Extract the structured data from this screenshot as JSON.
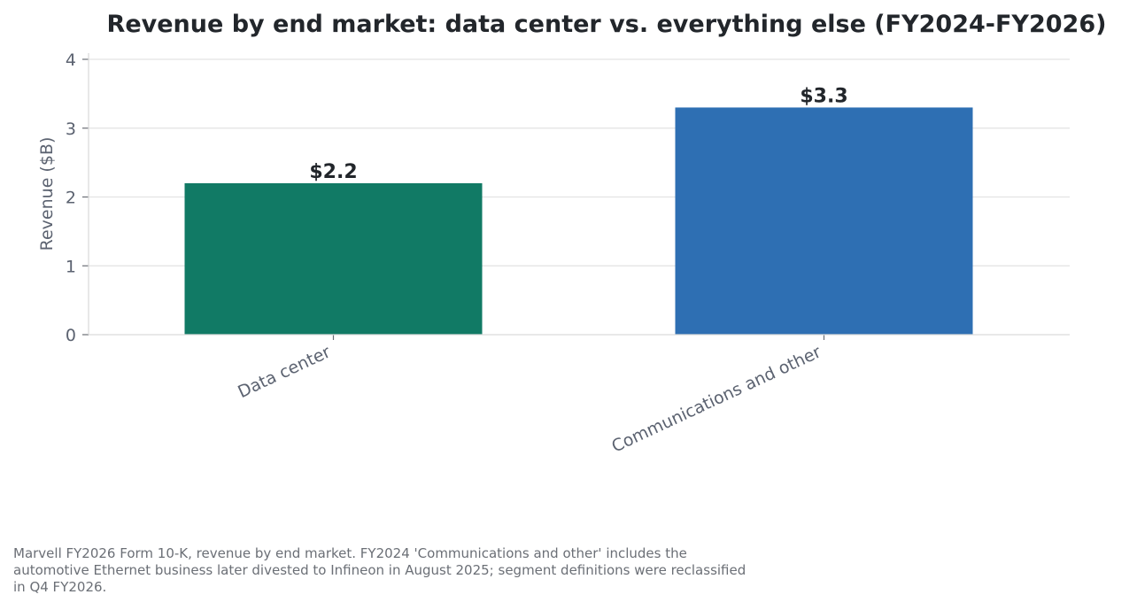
{
  "chart_data": {
    "type": "bar",
    "title": "Revenue by end market: data center vs. everything else (FY2024-FY2026)",
    "xlabel": "",
    "ylabel": "Revenue ($B)",
    "categories": [
      "Data center",
      "Communications and other"
    ],
    "values": [
      2.2,
      3.3
    ],
    "value_labels": [
      "$2.2",
      "$3.3"
    ],
    "ylim": [
      0,
      4
    ],
    "yticks": [
      "0",
      "1",
      "2",
      "3",
      "4"
    ],
    "colors": [
      "#117a65",
      "#2e6fb3"
    ],
    "grid": true,
    "legend": "none"
  },
  "footnote": "Marvell FY2026 Form 10-K, revenue by end market. FY2024 'Communications and other' includes the automotive Ethernet business later divested to Infineon in August 2025; segment definitions were reclassified in Q4 FY2026."
}
